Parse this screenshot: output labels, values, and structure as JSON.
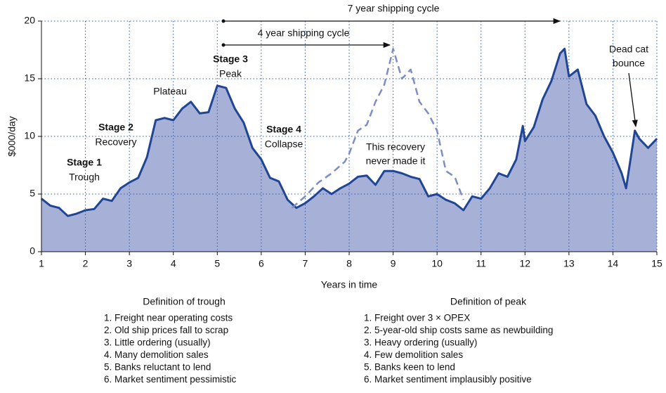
{
  "chart_data": {
    "type": "area",
    "y_label": "$000/day",
    "x_label": "Years in time",
    "xlim": [
      1,
      15
    ],
    "xticks": [
      1,
      2,
      3,
      4,
      5,
      6,
      7,
      8,
      9,
      10,
      11,
      12,
      13,
      14,
      15
    ],
    "ylim": [
      0,
      20
    ],
    "yticks": [
      0,
      5,
      10,
      15,
      20
    ],
    "grid": true,
    "series": [
      {
        "name": null,
        "color": "#1f4593",
        "fill": "#a7b1d8",
        "x": [
          1.0,
          1.2,
          1.4,
          1.6,
          1.8,
          2.0,
          2.2,
          2.4,
          2.6,
          2.8,
          3.0,
          3.2,
          3.4,
          3.6,
          3.8,
          4.0,
          4.2,
          4.4,
          4.6,
          4.8,
          5.0,
          5.2,
          5.4,
          5.6,
          5.8,
          6.0,
          6.2,
          6.4,
          6.6,
          6.8,
          7.0,
          7.2,
          7.4,
          7.6,
          7.8,
          8.0,
          8.2,
          8.4,
          8.6,
          8.8,
          9.0,
          9.2,
          9.4,
          9.6,
          9.8,
          10.0,
          10.2,
          10.4,
          10.6,
          10.8,
          11.0,
          11.2,
          11.4,
          11.6,
          11.8,
          11.95,
          12.0,
          12.2,
          12.4,
          12.6,
          12.8,
          12.9,
          13.0,
          13.2,
          13.4,
          13.6,
          13.8,
          14.0,
          14.2,
          14.3,
          14.5,
          14.6,
          14.8,
          15.0
        ],
        "values": [
          4.6,
          4.0,
          3.8,
          3.1,
          3.3,
          3.6,
          3.7,
          4.6,
          4.4,
          5.5,
          6.0,
          6.4,
          8.2,
          11.4,
          11.6,
          11.4,
          12.4,
          13.0,
          12.0,
          12.1,
          14.4,
          14.2,
          12.4,
          11.2,
          9.0,
          8.0,
          6.4,
          6.1,
          4.5,
          3.8,
          4.2,
          4.8,
          5.5,
          5.0,
          5.5,
          5.9,
          6.5,
          6.6,
          5.8,
          7.0,
          7.0,
          6.8,
          6.5,
          6.3,
          4.8,
          5.0,
          4.5,
          4.2,
          3.6,
          4.8,
          4.6,
          5.5,
          6.8,
          6.5,
          8.0,
          10.9,
          9.6,
          10.8,
          13.2,
          14.8,
          17.2,
          17.6,
          15.2,
          15.8,
          12.8,
          11.8,
          10.0,
          8.6,
          6.8,
          5.5,
          10.5,
          9.8,
          9.0,
          9.8
        ]
      },
      {
        "name": null,
        "color": "#7d8dc4",
        "dashed": true,
        "x": [
          6.7,
          7.0,
          7.3,
          7.6,
          7.9,
          8.0,
          8.2,
          8.4,
          8.6,
          8.8,
          9.0,
          9.2,
          9.4,
          9.6,
          9.8,
          10.0,
          10.2,
          10.4,
          10.6
        ],
        "values": [
          3.8,
          4.8,
          6.0,
          6.8,
          7.8,
          8.5,
          10.5,
          11.0,
          13.0,
          14.5,
          17.6,
          15.0,
          15.8,
          13.0,
          12.0,
          10.5,
          7.0,
          6.5,
          4.5
        ]
      }
    ],
    "annotations": {
      "stage1": "Stage 1",
      "trough": "Trough",
      "stage2": "Stage 2",
      "recovery": "Recovery",
      "plateau": "Plateau",
      "stage3": "Stage 3",
      "peak": "Peak",
      "stage4": "Stage 4",
      "collapse": "Collapse",
      "never1": "This recovery",
      "never2": "never made it",
      "dead1": "Dead cat",
      "dead2": "bounce",
      "cycle7": "7 year shipping cycle",
      "cycle4": "4 year shipping cycle"
    }
  },
  "definitions": {
    "trough": {
      "title": "Definition of trough",
      "items": [
        "1. Freight near operating costs",
        "2. Old ship prices fall to scrap",
        "3. Little ordering (usually)",
        "4. Many demolition sales",
        "5. Banks reluctant to lend",
        "6. Market sentiment pessimistic"
      ]
    },
    "peak": {
      "title": "Definition of peak",
      "items": [
        "1. Freight over 3 × OPEX",
        "2. 5-year-old ship costs same as newbuilding",
        "3. Heavy ordering (usually)",
        "4. Few demolition sales",
        "5. Banks keen to lend",
        "6. Market sentiment implausibly positive"
      ]
    }
  }
}
